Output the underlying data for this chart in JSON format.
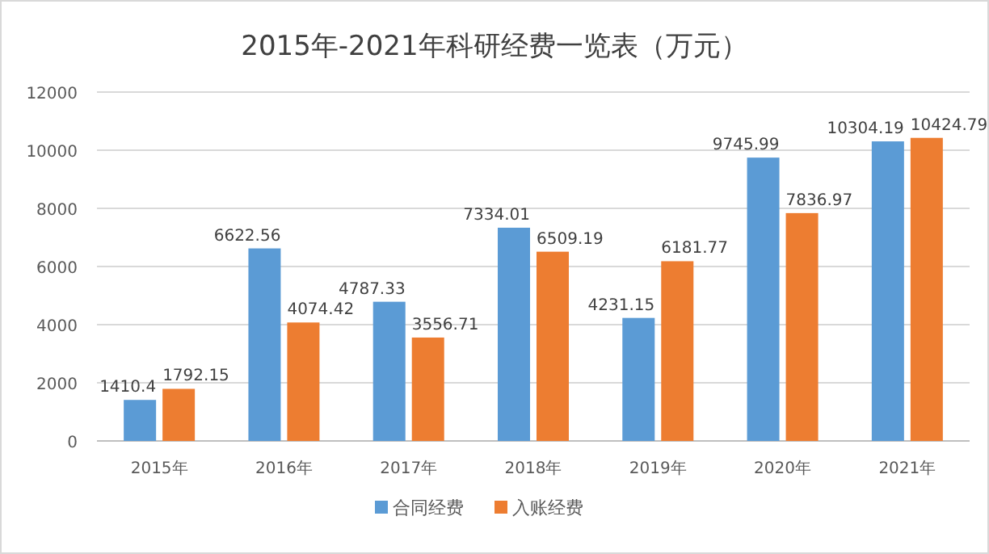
{
  "chart_data": {
    "type": "bar",
    "title": "2015年-2021年科研经费一览表（万元）",
    "categories": [
      "2015年",
      "2016年",
      "2017年",
      "2018年",
      "2019年",
      "2020年",
      "2021年"
    ],
    "series": [
      {
        "name": "合同经费",
        "color": "#5b9bd5",
        "values": [
          1410.4,
          6622.56,
          4787.33,
          7334.01,
          4231.15,
          9745.99,
          10304.19
        ]
      },
      {
        "name": "入账经费",
        "color": "#ed7d31",
        "values": [
          1792.15,
          4074.42,
          3556.71,
          6509.19,
          6181.77,
          7836.97,
          10424.79
        ]
      }
    ],
    "ylim": [
      0,
      12000
    ],
    "yticks": [
      0,
      2000,
      4000,
      6000,
      8000,
      10000,
      12000
    ],
    "grid": "y",
    "legend": "bottom",
    "data_labels": true
  }
}
